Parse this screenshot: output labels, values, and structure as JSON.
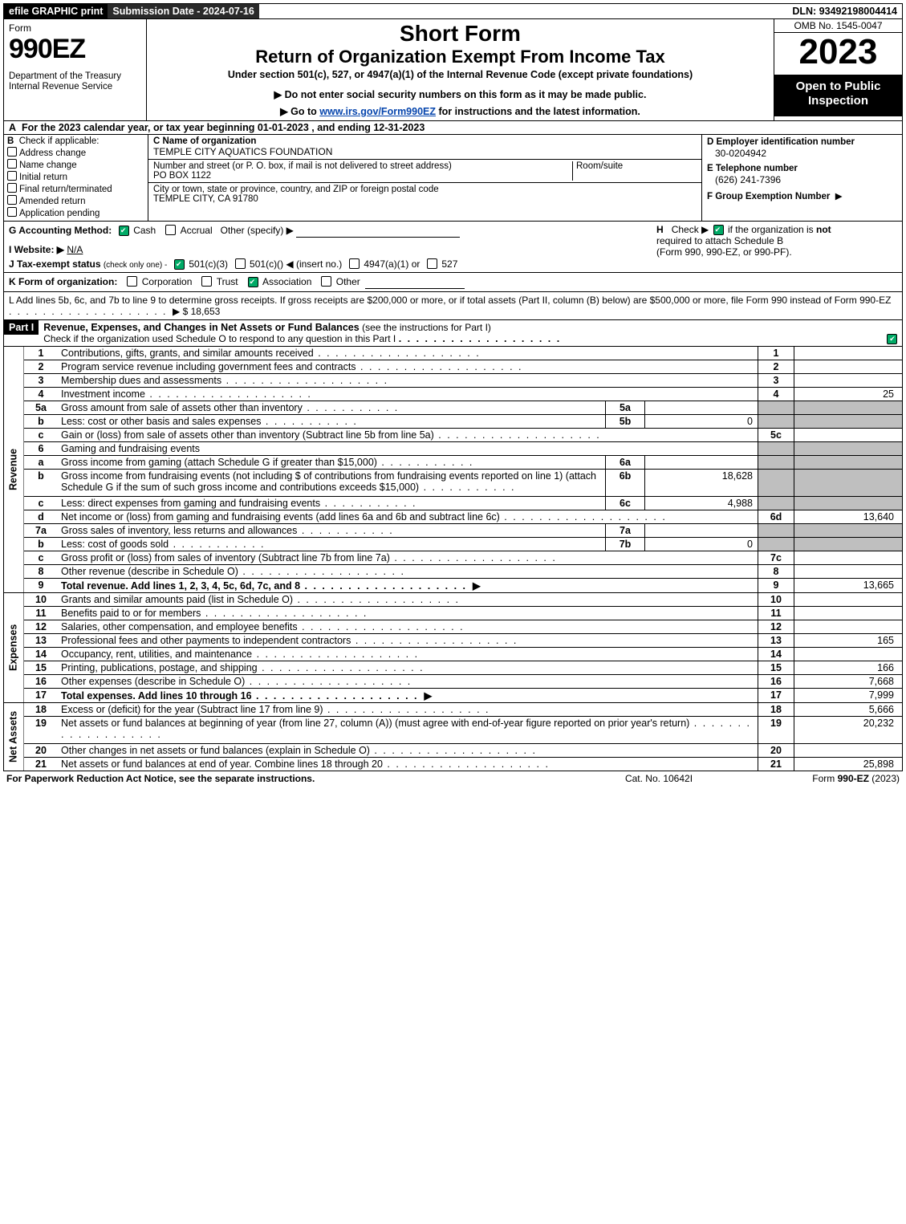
{
  "top": {
    "efile": "efile GRAPHIC print",
    "submission": "Submission Date - 2024-07-16",
    "dln": "DLN: 93492198004414"
  },
  "header": {
    "form_word": "Form",
    "form_num": "990EZ",
    "dept": "Department of the Treasury\nInternal Revenue Service",
    "short_form": "Short Form",
    "title": "Return of Organization Exempt From Income Tax",
    "undersec": "Under section 501(c), 527, or 4947(a)(1) of the Internal Revenue Code (except private foundations)",
    "do_not_enter": "▶ Do not enter social security numbers on this form as it may be made public.",
    "goto_pre": "▶ Go to ",
    "goto_link": "www.irs.gov/Form990EZ",
    "goto_post": " for instructions and the latest information.",
    "omb": "OMB No. 1545-0047",
    "year": "2023",
    "open": "Open to Public Inspection"
  },
  "rowA": {
    "label": "A",
    "text": "For the 2023 calendar year, or tax year beginning 01-01-2023 , and ending 12-31-2023"
  },
  "blockB": {
    "label": "B",
    "header": "Check if applicable:",
    "items": [
      "Address change",
      "Name change",
      "Initial return",
      "Final return/terminated",
      "Amended return",
      "Application pending"
    ]
  },
  "blockC": {
    "c_lbl": "C Name of organization",
    "c_org": "TEMPLE CITY AQUATICS FOUNDATION",
    "street_lbl": "Number and street (or P. O. box, if mail is not delivered to street address)",
    "street": "PO BOX 1122",
    "room_lbl": "Room/suite",
    "city_lbl": "City or town, state or province, country, and ZIP or foreign postal code",
    "city": "TEMPLE CITY, CA  91780"
  },
  "blockD": {
    "d_lbl": "D Employer identification number",
    "d_val": "30-0204942",
    "e_lbl": "E Telephone number",
    "e_val": "(626) 241-7396",
    "f_lbl": "F Group Exemption Number",
    "f_arrow": "▶"
  },
  "rowG": {
    "g_lbl": "G Accounting Method:",
    "cash": "Cash",
    "accrual": "Accrual",
    "other": "Other (specify) ▶",
    "h_lbl": "H",
    "h_text_pre": "Check ▶ ",
    "h_text_post": " if the organization is ",
    "h_not": "not",
    "h_text2": "required to attach Schedule B",
    "h_text3": "(Form 990, 990-EZ, or 990-PF)."
  },
  "rowI": {
    "lbl": "I Website: ▶",
    "val": "N/A"
  },
  "rowJ": {
    "lbl": "J Tax-exempt status",
    "sub": "(check only one) -",
    "o1": "501(c)(3)",
    "o2": "501(c)(",
    "o2b": ") ◀ (insert no.)",
    "o3": "4947(a)(1) or",
    "o4": "527"
  },
  "rowK": {
    "lbl": "K Form of organization:",
    "opts": [
      "Corporation",
      "Trust",
      "Association",
      "Other"
    ],
    "checked_idx": 2
  },
  "rowL": {
    "text": "L Add lines 5b, 6c, and 7b to line 9 to determine gross receipts. If gross receipts are $200,000 or more, or if total assets (Part II, column (B) below) are $500,000 or more, file Form 990 instead of Form 990-EZ",
    "arrow": "▶ $",
    "amount": "18,653"
  },
  "partI": {
    "hdr": "Part I",
    "title": "Revenue, Expenses, and Changes in Net Assets or Fund Balances",
    "title_sub": "(see the instructions for Part I)",
    "check_line": "Check if the organization used Schedule O to respond to any question in this Part I"
  },
  "sections": {
    "revenue_label": "Revenue",
    "expenses_label": "Expenses",
    "netassets_label": "Net Assets"
  },
  "lines": [
    {
      "n": "1",
      "d": "Contributions, gifts, grants, and similar amounts received",
      "num": "1",
      "amt": ""
    },
    {
      "n": "2",
      "d": "Program service revenue including government fees and contracts",
      "num": "2",
      "amt": ""
    },
    {
      "n": "3",
      "d": "Membership dues and assessments",
      "num": "3",
      "amt": ""
    },
    {
      "n": "4",
      "d": "Investment income",
      "num": "4",
      "amt": "25"
    },
    {
      "n": "5a",
      "d": "Gross amount from sale of assets other than inventory",
      "sub": "5a",
      "subval": "",
      "shade": true
    },
    {
      "n": "b",
      "d": "Less: cost or other basis and sales expenses",
      "sub": "5b",
      "subval": "0",
      "shade": true
    },
    {
      "n": "c",
      "d": "Gain or (loss) from sale of assets other than inventory (Subtract line 5b from line 5a)",
      "num": "5c",
      "amt": ""
    },
    {
      "n": "6",
      "d": "Gaming and fundraising events",
      "shade": true,
      "noamt": true
    },
    {
      "n": "a",
      "d": "Gross income from gaming (attach Schedule G if greater than $15,000)",
      "sub": "6a",
      "subval": "",
      "shade": true
    },
    {
      "n": "b",
      "d": "Gross income from fundraising events (not including $                    of contributions from fundraising events reported on line 1) (attach Schedule G if the sum of such gross income and contributions exceeds $15,000)",
      "sub": "6b",
      "subval": "18,628",
      "shade": true,
      "tall": true
    },
    {
      "n": "c",
      "d": "Less: direct expenses from gaming and fundraising events",
      "sub": "6c",
      "subval": "4,988",
      "shade": true
    },
    {
      "n": "d",
      "d": "Net income or (loss) from gaming and fundraising events (add lines 6a and 6b and subtract line 6c)",
      "num": "6d",
      "amt": "13,640"
    },
    {
      "n": "7a",
      "d": "Gross sales of inventory, less returns and allowances",
      "sub": "7a",
      "subval": "",
      "shade": true
    },
    {
      "n": "b",
      "d": "Less: cost of goods sold",
      "sub": "7b",
      "subval": "0",
      "shade": true
    },
    {
      "n": "c",
      "d": "Gross profit or (loss) from sales of inventory (Subtract line 7b from line 7a)",
      "num": "7c",
      "amt": ""
    },
    {
      "n": "8",
      "d": "Other revenue (describe in Schedule O)",
      "num": "8",
      "amt": ""
    },
    {
      "n": "9",
      "d": "Total revenue. Add lines 1, 2, 3, 4, 5c, 6d, 7c, and 8",
      "bold": true,
      "arrow": true,
      "num": "9",
      "amt": "13,665"
    }
  ],
  "exp_lines": [
    {
      "n": "10",
      "d": "Grants and similar amounts paid (list in Schedule O)",
      "num": "10",
      "amt": ""
    },
    {
      "n": "11",
      "d": "Benefits paid to or for members",
      "num": "11",
      "amt": ""
    },
    {
      "n": "12",
      "d": "Salaries, other compensation, and employee benefits",
      "num": "12",
      "amt": ""
    },
    {
      "n": "13",
      "d": "Professional fees and other payments to independent contractors",
      "num": "13",
      "amt": "165"
    },
    {
      "n": "14",
      "d": "Occupancy, rent, utilities, and maintenance",
      "num": "14",
      "amt": ""
    },
    {
      "n": "15",
      "d": "Printing, publications, postage, and shipping",
      "num": "15",
      "amt": "166"
    },
    {
      "n": "16",
      "d": "Other expenses (describe in Schedule O)",
      "num": "16",
      "amt": "7,668"
    },
    {
      "n": "17",
      "d": "Total expenses. Add lines 10 through 16",
      "bold": true,
      "arrow": true,
      "num": "17",
      "amt": "7,999"
    }
  ],
  "na_lines": [
    {
      "n": "18",
      "d": "Excess or (deficit) for the year (Subtract line 17 from line 9)",
      "num": "18",
      "amt": "5,666"
    },
    {
      "n": "19",
      "d": "Net assets or fund balances at beginning of year (from line 27, column (A)) (must agree with end-of-year figure reported on prior year's return)",
      "num": "19",
      "amt": "20,232",
      "tall": true
    },
    {
      "n": "20",
      "d": "Other changes in net assets or fund balances (explain in Schedule O)",
      "num": "20",
      "amt": ""
    },
    {
      "n": "21",
      "d": "Net assets or fund balances at end of year. Combine lines 18 through 20",
      "num": "21",
      "amt": "25,898"
    }
  ],
  "footer": {
    "left": "For Paperwork Reduction Act Notice, see the separate instructions.",
    "center": "Cat. No. 10642I",
    "right_pre": "Form ",
    "right_b": "990-EZ",
    "right_post": " (2023)"
  },
  "colors": {
    "black": "#000000",
    "shade": "#bfbfbf",
    "link": "#0645ad",
    "check_green": "#0a7a3f"
  }
}
